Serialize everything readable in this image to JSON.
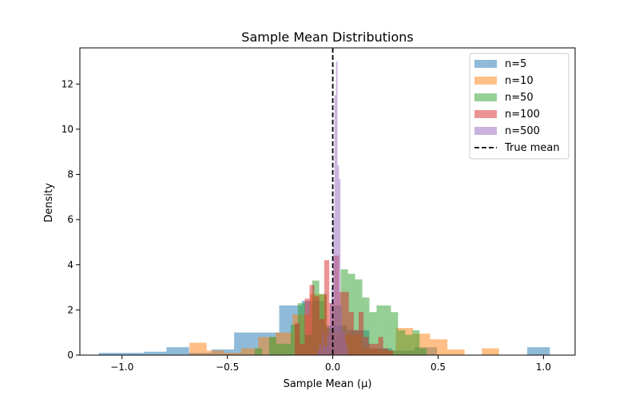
{
  "chart_data": {
    "type": "histogram",
    "title": "Sample Mean Distributions",
    "xlabel": "Sample Mean (μ)",
    "ylabel": "Density",
    "xlim": [
      -1.2,
      1.15
    ],
    "ylim": [
      0,
      13.6
    ],
    "xticks": [
      -1.0,
      -0.5,
      0.0,
      0.5,
      1.0
    ],
    "xtick_labels": [
      "−1.0",
      "−0.5",
      "0.0",
      "0.5",
      "1.0"
    ],
    "yticks": [
      0,
      2,
      4,
      6,
      8,
      10,
      12
    ],
    "ytick_labels": [
      "0",
      "2",
      "4",
      "6",
      "8",
      "10",
      "12"
    ],
    "grid": false,
    "legend_position": "upper right",
    "bar_opacity": 0.5,
    "series": [
      {
        "name": "n=5",
        "color": "#1f77b4",
        "bin_start": -1.11,
        "bin_width": 0.107,
        "values": [
          0.1,
          0.1,
          0.15,
          0.35,
          0.1,
          0.25,
          1.0,
          1.0,
          2.2,
          2.4,
          1.3,
          1.1,
          0.3,
          0.2,
          0.35,
          0.0,
          0.0,
          0.0,
          0.0,
          0.35
        ]
      },
      {
        "name": "n=10",
        "color": "#ff7f0e",
        "bin_start": -0.68,
        "bin_width": 0.0816,
        "values": [
          0.55,
          0.2,
          0.1,
          0.3,
          0.8,
          1.0,
          1.8,
          2.7,
          1.0,
          0.9,
          0.3,
          0.2,
          1.2,
          0.95,
          0.7,
          0.25,
          0.0,
          0.3,
          0.0,
          0.0,
          0.0,
          0.0,
          0.0
        ]
      },
      {
        "name": "n=50",
        "color": "#2ca02c",
        "bin_start": -0.37,
        "bin_width": 0.034,
        "values": [
          0.3,
          0.0,
          0.8,
          0.5,
          0.5,
          1.35,
          2.3,
          0.9,
          3.3,
          2.7,
          1.2,
          2.2,
          3.8,
          3.6,
          3.35,
          2.55,
          1.9,
          2.2,
          2.2,
          1.9,
          1.1,
          0.9,
          1.1,
          0.3
        ]
      },
      {
        "name": "n=100",
        "color": "#d62728",
        "bin_start": -0.18,
        "bin_width": 0.0233,
        "values": [
          1.4,
          0.5,
          2.5,
          3.1,
          2.6,
          1.6,
          4.2,
          2.3,
          4.4,
          2.8,
          2.8,
          1.9,
          1.1,
          1.9,
          0.8,
          0.5,
          0.5,
          0.8,
          0.3,
          0.2
        ]
      },
      {
        "name": "n=500",
        "color": "#9467bd",
        "bin_start": -0.07,
        "bin_width": 0.0071,
        "values": [
          0.2,
          0.5,
          0.2,
          1.0,
          0.4,
          0.4,
          0.9,
          1.0,
          2.3,
          3.0,
          6.1,
          11.5,
          13.0,
          8.4,
          7.8,
          2.2,
          1.0,
          1.0,
          0.6,
          0.3
        ]
      }
    ],
    "reference_line": {
      "name": "True mean",
      "x": 0.0,
      "color": "#000000",
      "style": "dashed"
    }
  }
}
